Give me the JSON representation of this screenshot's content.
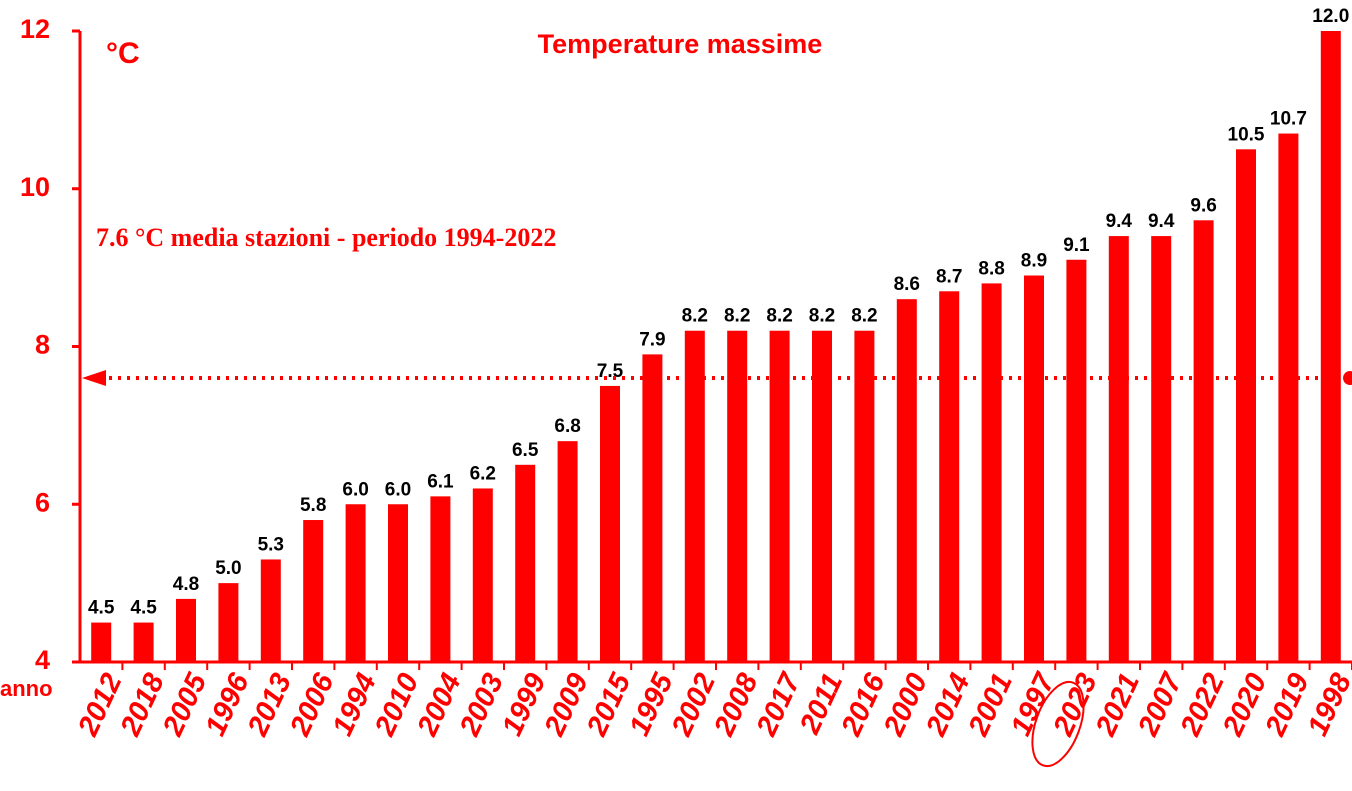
{
  "chart_data": {
    "type": "bar",
    "title": "Temperature massime",
    "y_label": "°C",
    "x_label": "anno",
    "annotation": "7.6 °C media stazioni - periodo 1994-2022",
    "reference_line": 7.6,
    "color": "#ff0000",
    "categories": [
      "2012",
      "2018",
      "2005",
      "1996",
      "2013",
      "2006",
      "1994",
      "2010",
      "2004",
      "2003",
      "1999",
      "2009",
      "2015",
      "1995",
      "2002",
      "2008",
      "2017",
      "2011",
      "2016",
      "2000",
      "2014",
      "2001",
      "1997",
      "2023",
      "2021",
      "2007",
      "2022",
      "2020",
      "2019",
      "1998"
    ],
    "values": [
      4.5,
      4.5,
      4.8,
      5.0,
      5.3,
      5.8,
      6.0,
      6.0,
      6.1,
      6.2,
      6.5,
      6.8,
      7.5,
      7.9,
      8.2,
      8.2,
      8.2,
      8.2,
      8.2,
      8.6,
      8.7,
      8.8,
      8.9,
      9.1,
      9.4,
      9.4,
      9.6,
      10.5,
      10.7,
      12.0
    ],
    "value_labels": [
      "4.5",
      "4.5",
      "4.8",
      "5.0",
      "5.3",
      "5.8",
      "6.0",
      "6.0",
      "6.1",
      "6.2",
      "6.5",
      "6.8",
      "7.5",
      "7.9",
      "8.2",
      "8.2",
      "8.2",
      "8.2",
      "8.2",
      "8.6",
      "8.7",
      "8.8",
      "8.9",
      "9.1",
      "9.4",
      "9.4",
      "9.6",
      "10.5",
      "10.7",
      "12.0"
    ],
    "ylim": [
      4,
      12
    ],
    "yticks": [
      4,
      6,
      8,
      10,
      12
    ]
  }
}
